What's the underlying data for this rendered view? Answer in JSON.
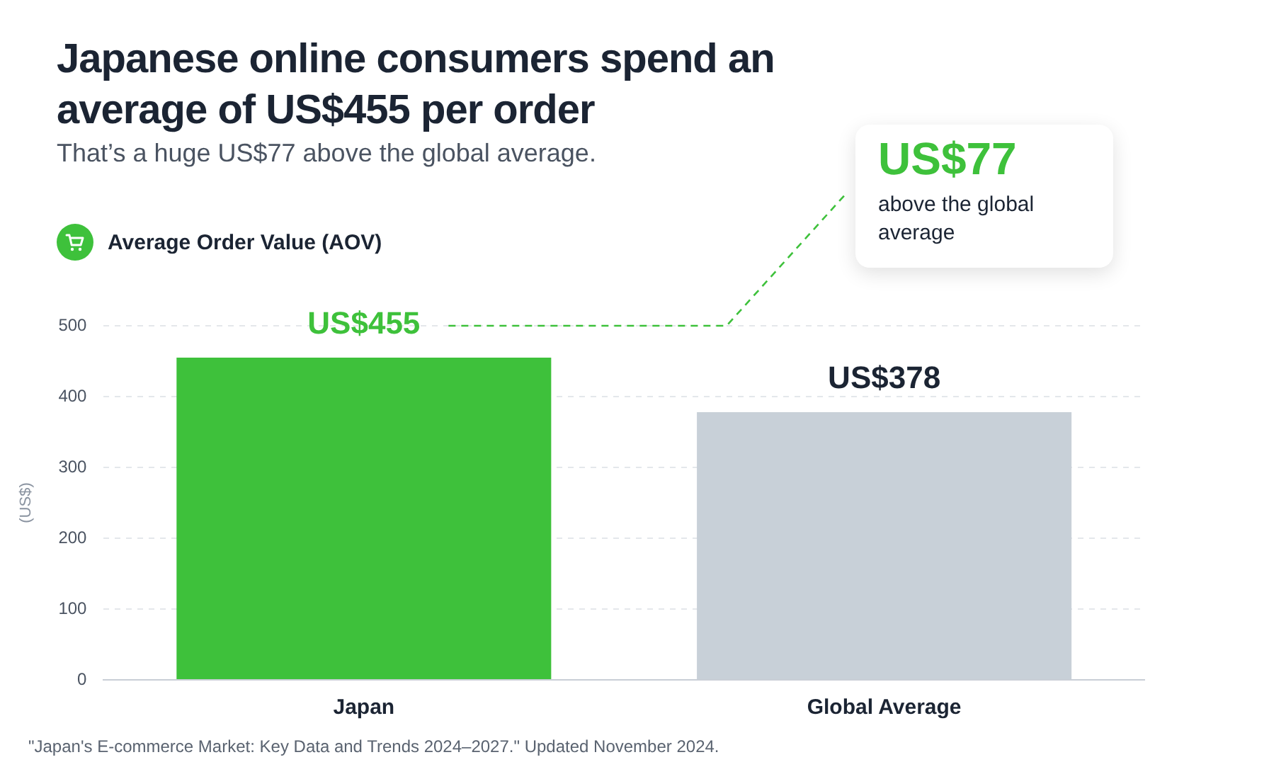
{
  "chart_data": {
    "type": "bar",
    "title": "Japanese online consumers spend an average of US$455 per order",
    "subtitle": "That’s a huge US$77 above the global average.",
    "ylabel": "(US$)",
    "categories": [
      "Japan",
      "Global Average"
    ],
    "series": [
      {
        "name": "Average Order Value (AOV)",
        "colors": [
          "#3ec13b",
          "#c8d0d8"
        ],
        "values": [
          455,
          378
        ],
        "value_labels": [
          "US$455",
          "US$378"
        ]
      }
    ],
    "ylim": [
      0,
      500
    ],
    "yticks": [
      0,
      100,
      200,
      300,
      400,
      500
    ],
    "grid": "y",
    "legend": "top left",
    "annotations": [
      "US$77",
      "above the global average",
      "\"Japan's E-commerce Market: Key Data and Trends 2024–2027.\" Updated November 2024."
    ]
  }
}
